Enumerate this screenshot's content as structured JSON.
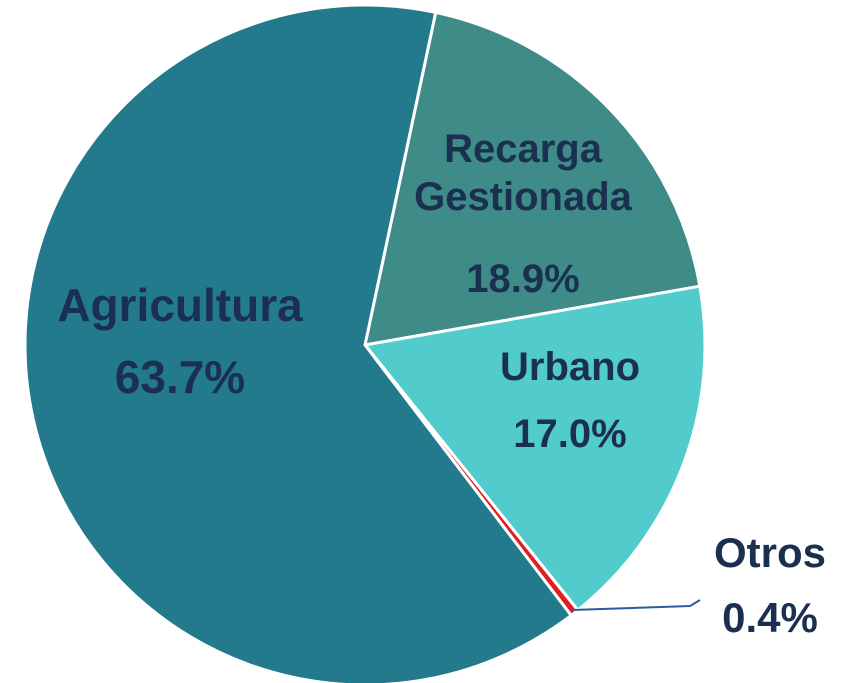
{
  "chart_data": {
    "type": "pie",
    "categories": [
      "Recarga Gestionada",
      "Urbano",
      "Otros",
      "Agricultura"
    ],
    "values": [
      18.9,
      17.0,
      0.4,
      63.7
    ],
    "value_labels": [
      "18.9%",
      "17.0%",
      "0.4%",
      "63.7%"
    ],
    "colors": [
      "#3e8b87",
      "#52cbcc",
      "#e02020",
      "#237a8c"
    ]
  }
}
